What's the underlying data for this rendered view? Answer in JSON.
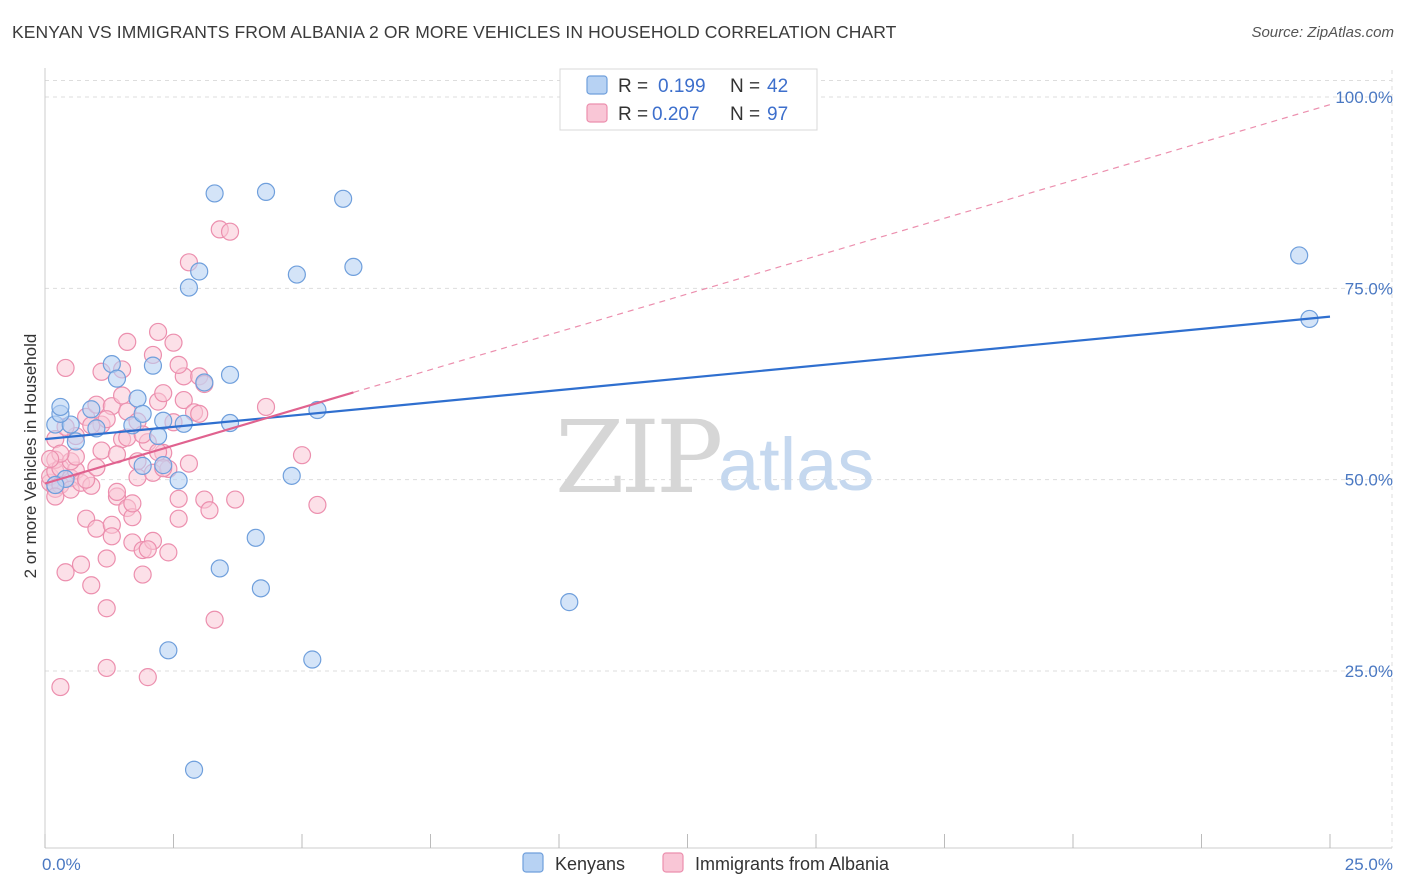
{
  "title": "KENYAN VS IMMIGRANTS FROM ALBANIA 2 OR MORE VEHICLES IN HOUSEHOLD CORRELATION CHART",
  "source": "Source: ZipAtlas.com",
  "colors": {
    "kenyan_fill": "#b7d2f3",
    "kenyan_stroke": "#6f9fdc",
    "kenyan_line": "#2f6fcf",
    "albania_fill": "#f9c6d6",
    "albania_stroke": "#ec8fae",
    "albania_line": "#e0628f",
    "grid": "#dddddd",
    "axis_label": "#4a78c2"
  },
  "legend": {
    "r_label": "R =",
    "n_label": "N =",
    "kenyan": {
      "r": "0.199",
      "n": "42"
    },
    "albania": {
      "r": "0.207",
      "n": "97"
    }
  },
  "watermark": {
    "zip": "ZIP",
    "atlas": "atlas"
  },
  "chart_data": {
    "type": "scatter",
    "title": "KENYAN VS IMMIGRANTS FROM ALBANIA 2 OR MORE VEHICLES IN HOUSEHOLD CORRELATION CHART",
    "xlabel": "",
    "ylabel": "2 or more Vehicles in Household",
    "xlim": [
      0,
      25
    ],
    "ylim": [
      0,
      102
    ],
    "x_ticks": [
      0,
      2.5,
      5,
      7.5,
      10,
      12.5,
      15,
      17.5,
      20,
      22.5,
      25
    ],
    "x_tick_labels": [
      {
        "x": 0,
        "label": "0.0%"
      },
      {
        "x": 25,
        "label": "25.0%"
      }
    ],
    "y_tick_labels": [
      {
        "y": 25,
        "label": "25.0%"
      },
      {
        "y": 50,
        "label": "50.0%"
      },
      {
        "y": 75,
        "label": "75.0%"
      },
      {
        "y": 100,
        "label": "100.0%"
      }
    ],
    "grid": true,
    "legend_position": "top-center",
    "series": [
      {
        "name": "Kenyans",
        "trend": {
          "x0": 0,
          "y0": 55.3,
          "x1": 25,
          "y1": 71.3
        },
        "points": [
          [
            0.2,
            57.2
          ],
          [
            0.5,
            57.2
          ],
          [
            0.3,
            58.6
          ],
          [
            0.6,
            55.0
          ],
          [
            0.9,
            59.2
          ],
          [
            1.3,
            65.1
          ],
          [
            1.4,
            63.2
          ],
          [
            1.7,
            57.1
          ],
          [
            1.8,
            60.6
          ],
          [
            1.9,
            51.8
          ],
          [
            1.9,
            58.6
          ],
          [
            2.1,
            64.9
          ],
          [
            2.2,
            55.7
          ],
          [
            2.3,
            51.9
          ],
          [
            2.3,
            57.7
          ],
          [
            2.4,
            27.7
          ],
          [
            2.6,
            49.9
          ],
          [
            2.7,
            57.3
          ],
          [
            2.8,
            75.1
          ],
          [
            3.0,
            77.2
          ],
          [
            3.1,
            62.7
          ],
          [
            3.3,
            87.4
          ],
          [
            3.4,
            38.4
          ],
          [
            3.6,
            57.4
          ],
          [
            3.6,
            63.7
          ],
          [
            4.1,
            42.4
          ],
          [
            4.2,
            35.8
          ],
          [
            4.3,
            87.6
          ],
          [
            4.8,
            50.5
          ],
          [
            4.9,
            76.8
          ],
          [
            5.2,
            26.5
          ],
          [
            5.3,
            59.1
          ],
          [
            5.8,
            86.7
          ],
          [
            6.0,
            77.8
          ],
          [
            10.2,
            34.0
          ],
          [
            24.4,
            79.3
          ],
          [
            24.6,
            71.0
          ],
          [
            2.9,
            12.1
          ],
          [
            0.3,
            59.5
          ],
          [
            1.0,
            56.7
          ],
          [
            0.4,
            50.1
          ],
          [
            0.2,
            49.3
          ]
        ]
      },
      {
        "name": "Immigrants from Albania",
        "trend": {
          "x0": 0,
          "y0": 49.5,
          "x1": 6.0,
          "y1": 61.4
        },
        "trend_extension": {
          "x0": 6.0,
          "y0": 61.4,
          "x1": 25,
          "y1": 99.0
        },
        "points": [
          [
            0.1,
            49.6
          ],
          [
            0.1,
            50.4
          ],
          [
            0.2,
            51.1
          ],
          [
            0.2,
            48.8
          ],
          [
            0.2,
            52.6
          ],
          [
            0.3,
            51.5
          ],
          [
            0.3,
            49.3
          ],
          [
            0.3,
            22.9
          ],
          [
            0.4,
            37.9
          ],
          [
            0.4,
            64.6
          ],
          [
            0.5,
            50.2
          ],
          [
            0.5,
            48.7
          ],
          [
            0.6,
            51.2
          ],
          [
            0.6,
            55.7
          ],
          [
            0.7,
            38.9
          ],
          [
            0.7,
            49.6
          ],
          [
            0.8,
            44.9
          ],
          [
            0.8,
            58.2
          ],
          [
            0.9,
            36.2
          ],
          [
            0.9,
            49.2
          ],
          [
            1.0,
            59.8
          ],
          [
            1.0,
            43.6
          ],
          [
            1.1,
            53.8
          ],
          [
            1.1,
            57.2
          ],
          [
            1.1,
            64.1
          ],
          [
            1.2,
            33.2
          ],
          [
            1.2,
            25.4
          ],
          [
            1.2,
            39.7
          ],
          [
            1.3,
            44.1
          ],
          [
            1.3,
            59.6
          ],
          [
            1.4,
            47.8
          ],
          [
            1.4,
            48.4
          ],
          [
            1.5,
            55.3
          ],
          [
            1.5,
            61.0
          ],
          [
            1.5,
            64.4
          ],
          [
            1.6,
            46.3
          ],
          [
            1.6,
            58.9
          ],
          [
            1.6,
            68.0
          ],
          [
            1.7,
            41.8
          ],
          [
            1.7,
            45.1
          ],
          [
            1.8,
            50.3
          ],
          [
            1.8,
            52.4
          ],
          [
            1.8,
            57.6
          ],
          [
            1.9,
            40.8
          ],
          [
            1.9,
            37.6
          ],
          [
            2.0,
            24.2
          ],
          [
            2.0,
            54.9
          ],
          [
            2.1,
            50.9
          ],
          [
            2.1,
            66.3
          ],
          [
            2.1,
            42.0
          ],
          [
            2.2,
            60.2
          ],
          [
            2.2,
            69.3
          ],
          [
            2.3,
            53.5
          ],
          [
            2.3,
            61.3
          ],
          [
            2.4,
            51.4
          ],
          [
            2.4,
            40.5
          ],
          [
            2.5,
            57.5
          ],
          [
            2.5,
            67.9
          ],
          [
            2.6,
            47.5
          ],
          [
            2.6,
            44.9
          ],
          [
            2.7,
            60.4
          ],
          [
            2.7,
            63.5
          ],
          [
            2.8,
            78.4
          ],
          [
            2.9,
            58.8
          ],
          [
            3.0,
            63.5
          ],
          [
            3.1,
            62.5
          ],
          [
            3.1,
            47.4
          ],
          [
            3.2,
            46.0
          ],
          [
            3.3,
            31.7
          ],
          [
            3.4,
            82.7
          ],
          [
            3.6,
            82.4
          ],
          [
            3.7,
            47.4
          ],
          [
            4.3,
            59.5
          ],
          [
            5.0,
            53.2
          ],
          [
            5.3,
            46.7
          ],
          [
            0.2,
            55.3
          ],
          [
            0.4,
            56.9
          ],
          [
            0.5,
            52.4
          ],
          [
            0.6,
            53.0
          ],
          [
            0.8,
            50.0
          ],
          [
            0.9,
            57.1
          ],
          [
            1.0,
            51.6
          ],
          [
            1.2,
            57.9
          ],
          [
            1.3,
            42.6
          ],
          [
            1.4,
            53.3
          ],
          [
            1.6,
            55.5
          ],
          [
            1.7,
            46.9
          ],
          [
            1.9,
            55.9
          ],
          [
            2.0,
            40.9
          ],
          [
            2.2,
            53.6
          ],
          [
            2.3,
            51.5
          ],
          [
            2.6,
            65.0
          ],
          [
            2.8,
            52.1
          ],
          [
            3.0,
            58.6
          ],
          [
            0.2,
            47.8
          ],
          [
            0.3,
            53.4
          ],
          [
            0.1,
            52.7
          ]
        ]
      }
    ]
  }
}
